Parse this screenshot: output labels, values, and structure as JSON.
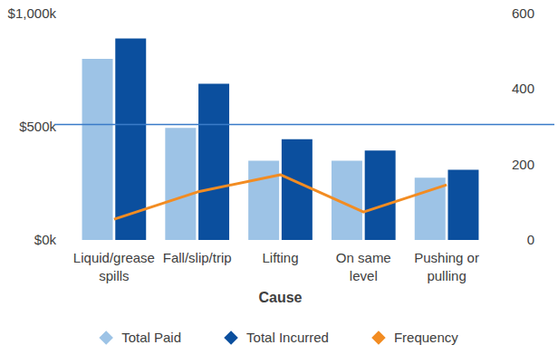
{
  "chart_data": {
    "type": "bar",
    "x_label": "Cause",
    "categories": [
      "Liquid/grease spills",
      "Fall/slip/trip",
      "Lifting",
      "On same level",
      "Pushing or pulling"
    ],
    "series": [
      {
        "name": "Total Paid",
        "type": "bar",
        "color": "#9dc3e6",
        "values": [
          800000,
          495000,
          350000,
          350000,
          275000
        ]
      },
      {
        "name": "Total Incurred",
        "type": "bar",
        "color": "#0b4f9e",
        "values": [
          890000,
          690000,
          445000,
          395000,
          310000
        ]
      },
      {
        "name": "Frequency",
        "type": "line",
        "axis": "y2",
        "color": "#f28c22",
        "values": [
          55,
          127,
          173,
          74,
          146
        ]
      }
    ],
    "ylim": [
      0,
      1000000
    ],
    "yticks": [
      {
        "value": 0,
        "label": "$0k"
      },
      {
        "value": 500000,
        "label": "$500k"
      },
      {
        "value": 1000000,
        "label": "$1,000k"
      }
    ],
    "y2lim": [
      0,
      600
    ],
    "y2ticks": [
      0,
      200,
      400,
      600
    ],
    "reference_line": 510000,
    "grid": false,
    "legend": "bottom"
  }
}
